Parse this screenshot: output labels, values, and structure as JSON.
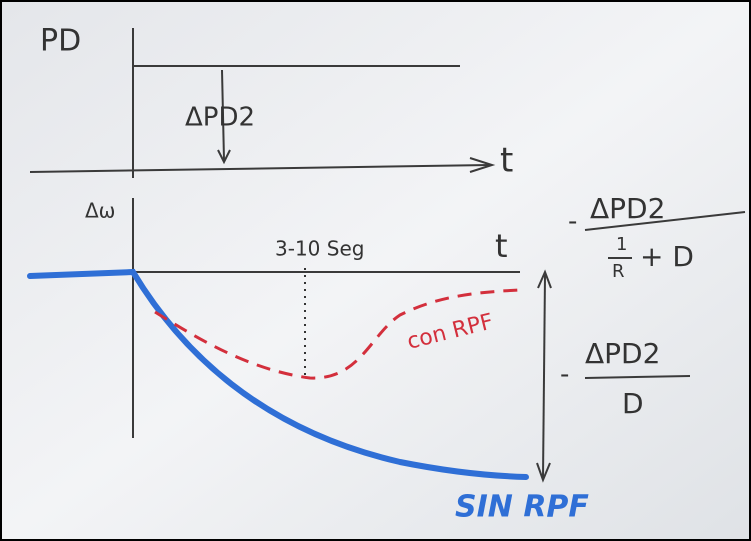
{
  "axes": {
    "top_y_label": "PD",
    "top_step_label": "ΔPD2",
    "top_x_label": "t",
    "bottom_y_label": "Δω",
    "bottom_x_label": "t"
  },
  "annotations": {
    "time_range": "3-10 Seg",
    "curve_with": "con RPF",
    "curve_without": "SIN RPF"
  },
  "formula_with": {
    "sign": "-",
    "numerator": "ΔPD2",
    "denominator_fraction_top": "1",
    "denominator_fraction_bottom": "R",
    "denominator_rest": "+ D"
  },
  "formula_without": {
    "sign": "-",
    "numerator": "ΔPD2",
    "denominator": "D"
  }
}
